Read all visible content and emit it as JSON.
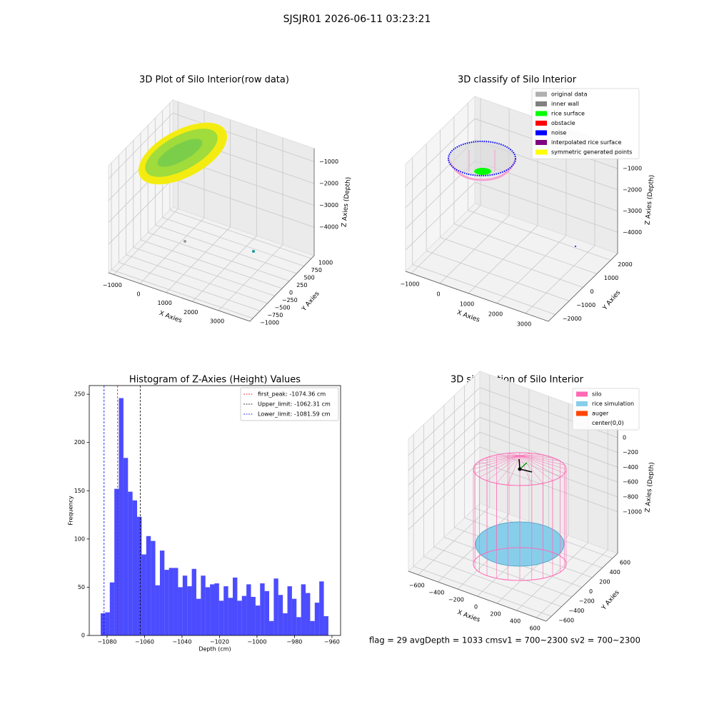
{
  "title": "SJSJR01 2026-06-11 03:23:21",
  "footer": "flag = 29  avgDepth = 1033 cmsv1 = 700~2300  sv2 = 700~2300",
  "chart_data": [
    {
      "type": "scatter3d",
      "title": "3D Plot of Silo Interior(row data)",
      "xlabel": "X Axies",
      "ylabel": "Y Axies",
      "zlabel": "Z Axies (Depth)",
      "xlim": [
        -1200,
        4200
      ],
      "ylim": [
        -1100,
        1100
      ],
      "zlim": [
        -5300,
        -400
      ],
      "xticks": [
        {
          "value": -1000,
          "label": "−1000"
        },
        0,
        1000,
        2000,
        3000
      ],
      "yticks": [
        {
          "value": -1000,
          "label": "−1000"
        },
        {
          "value": -750,
          "label": "−750"
        },
        {
          "value": -500,
          "label": "−500"
        },
        {
          "value": -250,
          "label": "−250"
        },
        0,
        250,
        500,
        750,
        1000
      ],
      "zticks": [
        {
          "value": -4000,
          "label": "−4000"
        },
        {
          "value": -3000,
          "label": "−3000"
        },
        {
          "value": -2000,
          "label": "−2000"
        },
        {
          "value": -1000,
          "label": "−1000"
        }
      ]
    },
    {
      "type": "scatter3d",
      "title": "3D classify of Silo Interior",
      "xlabel": "X Axies",
      "ylabel": "Y Axies",
      "zlabel": "Z Axies (Depth)",
      "xlim": [
        -1200,
        3800
      ],
      "ylim": [
        -2500,
        2500
      ],
      "zlim": [
        -5000,
        50
      ],
      "xticks": [
        {
          "value": -1000,
          "label": "−1000"
        },
        0,
        1000,
        2000,
        3000
      ],
      "yticks": [
        {
          "value": -2000,
          "label": "−2000"
        },
        {
          "value": -1000,
          "label": "−1000"
        },
        0,
        1000,
        2000
      ],
      "zticks": [
        {
          "value": -4000,
          "label": "−4000"
        },
        {
          "value": -3000,
          "label": "−3000"
        },
        {
          "value": -2000,
          "label": "−2000"
        },
        {
          "value": -1000,
          "label": "−1000"
        }
      ],
      "legend": "upper right",
      "series": [
        {
          "name": "original data",
          "color": "#b0b0b0"
        },
        {
          "name": "inner wall",
          "color": "#808080"
        },
        {
          "name": "rice surface",
          "color": "#00ff00"
        },
        {
          "name": "obstacle",
          "color": "#ff0000"
        },
        {
          "name": "noise",
          "color": "#0000ff"
        },
        {
          "name": "interpolated rice surface",
          "color": "#800080"
        },
        {
          "name": "symmetric generated points",
          "color": "#ffff00"
        }
      ]
    },
    {
      "type": "histogram",
      "title": "Histogram of Z-Axies (Height) Values",
      "xlabel": "Depth (cm)",
      "ylabel": "Frequency",
      "bins": [
        -1083.4,
        -1080.97,
        -1078.54,
        -1076.11,
        -1073.68,
        -1071.25,
        -1068.82,
        -1066.39,
        -1063.96,
        -1061.53,
        -1059.1,
        -1056.67,
        -1054.24,
        -1051.81,
        -1049.38,
        -1046.95,
        -1044.52,
        -1042.09,
        -1039.66,
        -1037.23,
        -1034.8,
        -1032.37,
        -1029.94,
        -1027.51,
        -1025.08,
        -1022.65,
        -1020.22,
        -1017.79,
        -1015.36,
        -1012.93,
        -1010.5,
        -1008.07,
        -1005.64,
        -1003.21,
        -1000.78,
        -998.35,
        -995.92,
        -993.49,
        -991.06,
        -988.63,
        -986.2,
        -983.77,
        -981.34,
        -978.91,
        -976.48,
        -974.05,
        -971.62,
        -969.19,
        -966.76,
        -964.33,
        -961.9
      ],
      "values": [
        23,
        24,
        55,
        152,
        246,
        184,
        149,
        140,
        123,
        84,
        103,
        98,
        52,
        88,
        68,
        70,
        70,
        50,
        62,
        51,
        69,
        38,
        62,
        50,
        53,
        54,
        36,
        51,
        39,
        60,
        36,
        41,
        53,
        40,
        31,
        54,
        46,
        15,
        59,
        42,
        23,
        51,
        38,
        19,
        53,
        44,
        15,
        34,
        56,
        20
      ],
      "color": "#0000ff",
      "alpha": 0.7,
      "xlim": [
        -1089.5,
        -955.4
      ],
      "ylim": [
        0,
        259
      ],
      "xticks": [
        {
          "value": -1080,
          "label": "−1080"
        },
        {
          "value": -1060,
          "label": "−1060"
        },
        {
          "value": -1040,
          "label": "−1040"
        },
        {
          "value": -1020,
          "label": "−1020"
        },
        {
          "value": -1000,
          "label": "−1000"
        },
        {
          "value": -980,
          "label": "−980"
        },
        {
          "value": -960,
          "label": "−960"
        }
      ],
      "yticks": [
        0,
        50,
        100,
        150,
        200,
        250
      ],
      "legend": "upper right",
      "vlines": [
        {
          "name": "first_peak: -1074.36 cm",
          "value": -1074.36,
          "color": "#ff0000"
        },
        {
          "name": "Upper_limit: -1062.31 cm",
          "value": -1062.31,
          "color": "#000000"
        },
        {
          "name": "Lower_limit: -1081.59 cm",
          "value": -1081.59,
          "color": "#0000ff"
        }
      ]
    },
    {
      "type": "scatter3d",
      "title": "3D simulation of Silo Interior",
      "xlabel": "X Axies",
      "ylabel": "Y Axies",
      "zlabel": "Z Axies (Depth)",
      "xlim": [
        -700,
        700
      ],
      "ylim": [
        -700,
        700
      ],
      "zlim": [
        -1560,
        220
      ],
      "xticks": [
        {
          "value": -600,
          "label": "−600"
        },
        {
          "value": -400,
          "label": "−400"
        },
        {
          "value": -200,
          "label": "−200"
        },
        0,
        200,
        400,
        600
      ],
      "yticks": [
        {
          "value": -600,
          "label": "−600"
        },
        {
          "value": -400,
          "label": "−400"
        },
        {
          "value": -200,
          "label": "−200"
        },
        0,
        200,
        400,
        600
      ],
      "zticks": [
        0,
        {
          "value": -200,
          "label": "−200"
        },
        {
          "value": -400,
          "label": "−400"
        },
        {
          "value": -600,
          "label": "−600"
        },
        {
          "value": -800,
          "label": "−800"
        },
        {
          "value": -1000,
          "label": "−1000"
        }
      ],
      "legend": "upper right",
      "series": [
        {
          "name": "silo",
          "color": "#ff69b4"
        },
        {
          "name": "rice simulation",
          "color": "#87ceeb"
        },
        {
          "name": "auger",
          "color": "#ff4500"
        },
        {
          "name": "center(0,0)"
        }
      ]
    }
  ]
}
